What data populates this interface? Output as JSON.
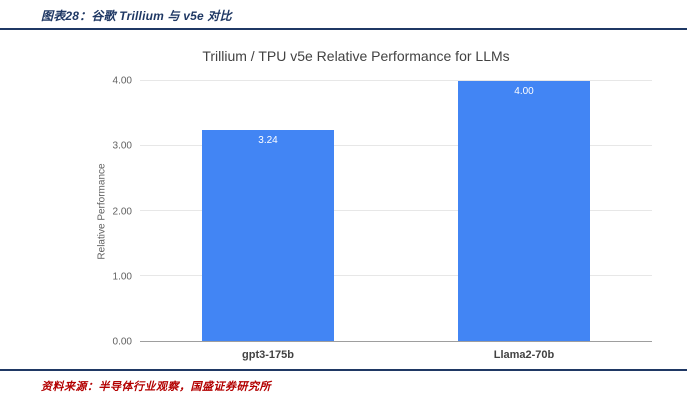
{
  "header": {
    "title": "图表28：谷歌 Trillium 与 v5e 对比"
  },
  "chart_data": {
    "type": "bar",
    "title": "Trillium / TPU v5e Relative Performance for LLMs",
    "categories": [
      "gpt3-175b",
      "Llama2-70b"
    ],
    "values": [
      3.24,
      4.0
    ],
    "value_labels": [
      "3.24",
      "4.00"
    ],
    "xlabel": "",
    "ylabel": "Relative Performance",
    "ylim": [
      0,
      4
    ],
    "yticks": [
      "0.00",
      "1.00",
      "2.00",
      "3.00",
      "4.00"
    ],
    "bar_color": "#4285f4",
    "grid": true,
    "legend": "none"
  },
  "footer": {
    "source": "资料来源：半导体行业观察，国盛证券研究所"
  }
}
